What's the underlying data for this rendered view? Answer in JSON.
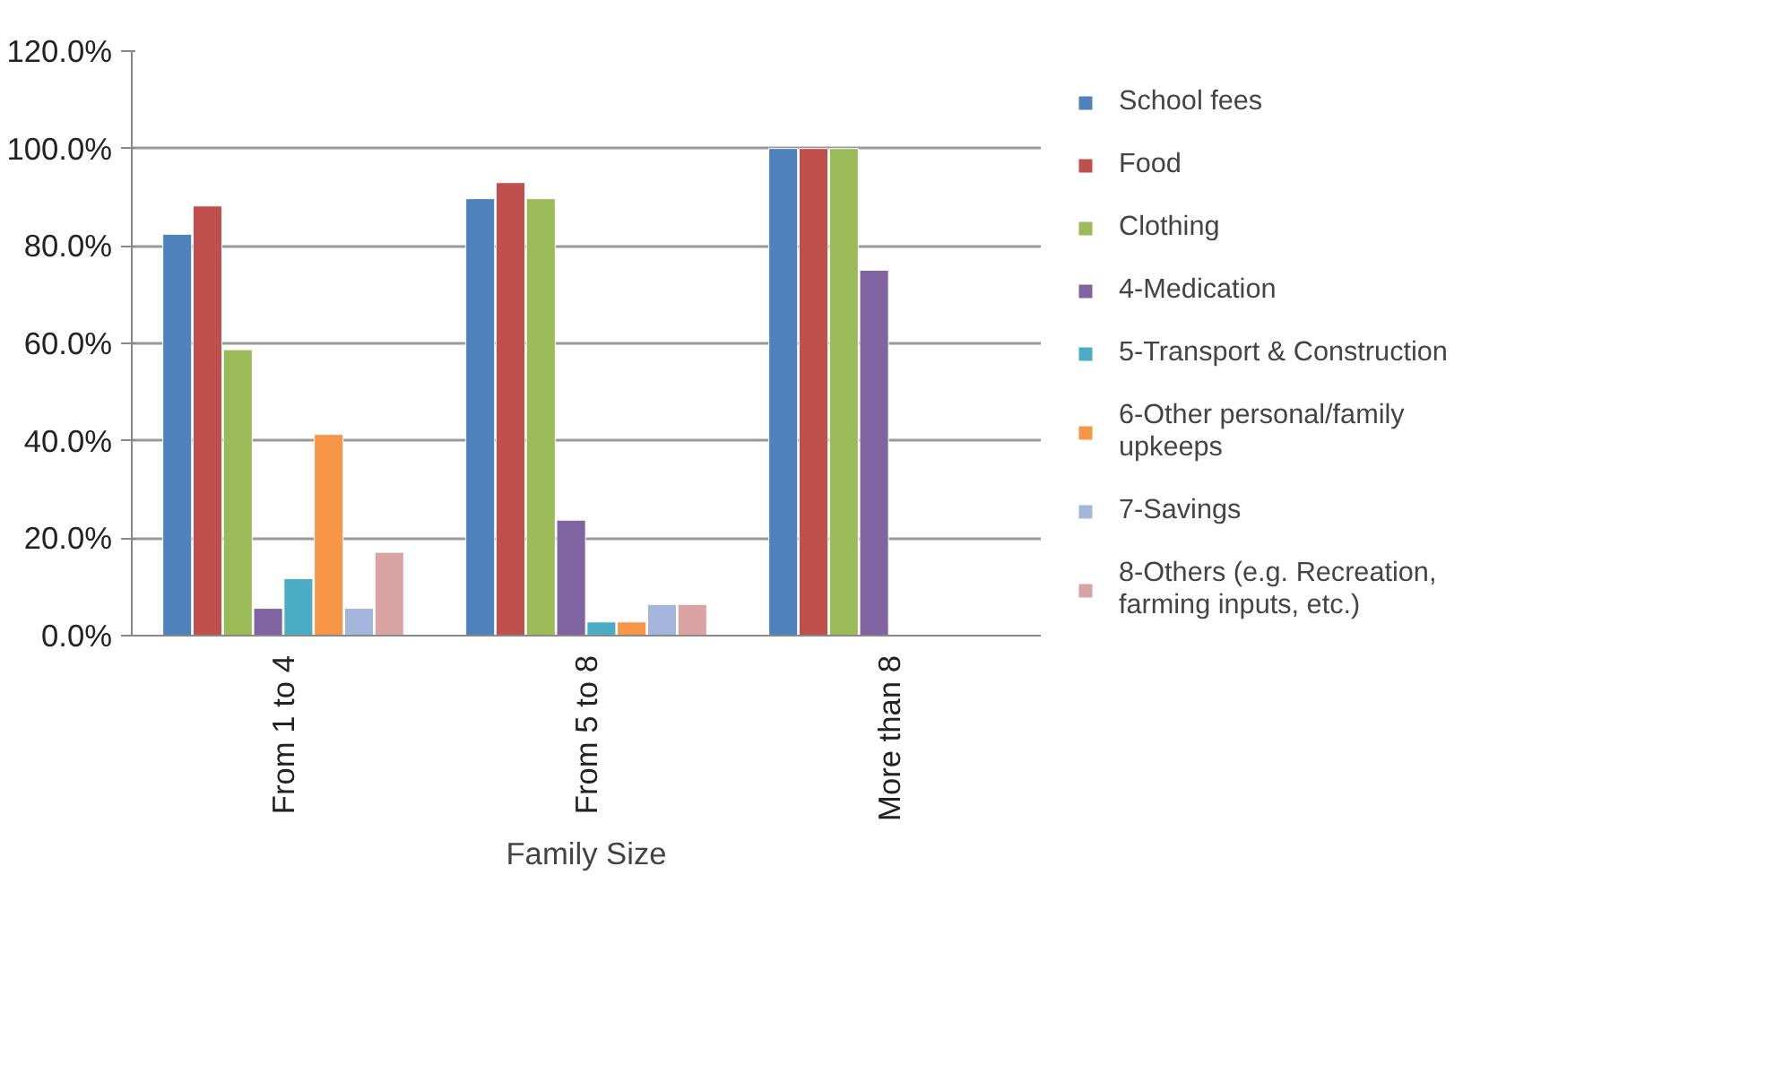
{
  "chart_data": {
    "type": "bar",
    "xlabel": "Family Size",
    "categories": [
      "From 1 to 4",
      "From 5 to 8",
      "More than 8"
    ],
    "series": [
      {
        "name": "School fees",
        "color": "#4f81bd",
        "values": [
          82.4,
          89.7,
          100
        ]
      },
      {
        "name": "Food",
        "color": "#c0504d",
        "values": [
          88.2,
          93.0,
          100
        ]
      },
      {
        "name": "Clothing",
        "color": "#9bbb59",
        "values": [
          58.7,
          89.7,
          100
        ]
      },
      {
        "name": "4-Medication",
        "color": "#8064a2",
        "values": [
          5.6,
          23.7,
          75
        ]
      },
      {
        "name": "5-Transport & Construction",
        "color": "#4bacc6",
        "values": [
          11.7,
          2.8,
          null
        ]
      },
      {
        "name": "6-Other personal/family upkeeps",
        "color": "#f79646",
        "values": [
          41.3,
          2.8,
          null
        ]
      },
      {
        "name": "7-Savings",
        "color": "#a5b6dc",
        "values": [
          5.6,
          6.4,
          null
        ]
      },
      {
        "name": "8-Others (e.g. Recreation, farming inputs, etc.)",
        "color": "#d9a3a3",
        "values": [
          17.1,
          6.4,
          null
        ]
      }
    ],
    "ylim": [
      0,
      120
    ],
    "yticks": [
      {
        "value": 0,
        "label": "0.0%"
      },
      {
        "value": 20,
        "label": "20.0%"
      },
      {
        "value": 40,
        "label": "40.0%"
      },
      {
        "value": 60,
        "label": "60.0%"
      },
      {
        "value": 80,
        "label": "80.0%"
      },
      {
        "value": 100,
        "label": "100.0%"
      },
      {
        "value": 120,
        "label": "120.0%"
      }
    ],
    "grid": "y",
    "legend": "right"
  }
}
